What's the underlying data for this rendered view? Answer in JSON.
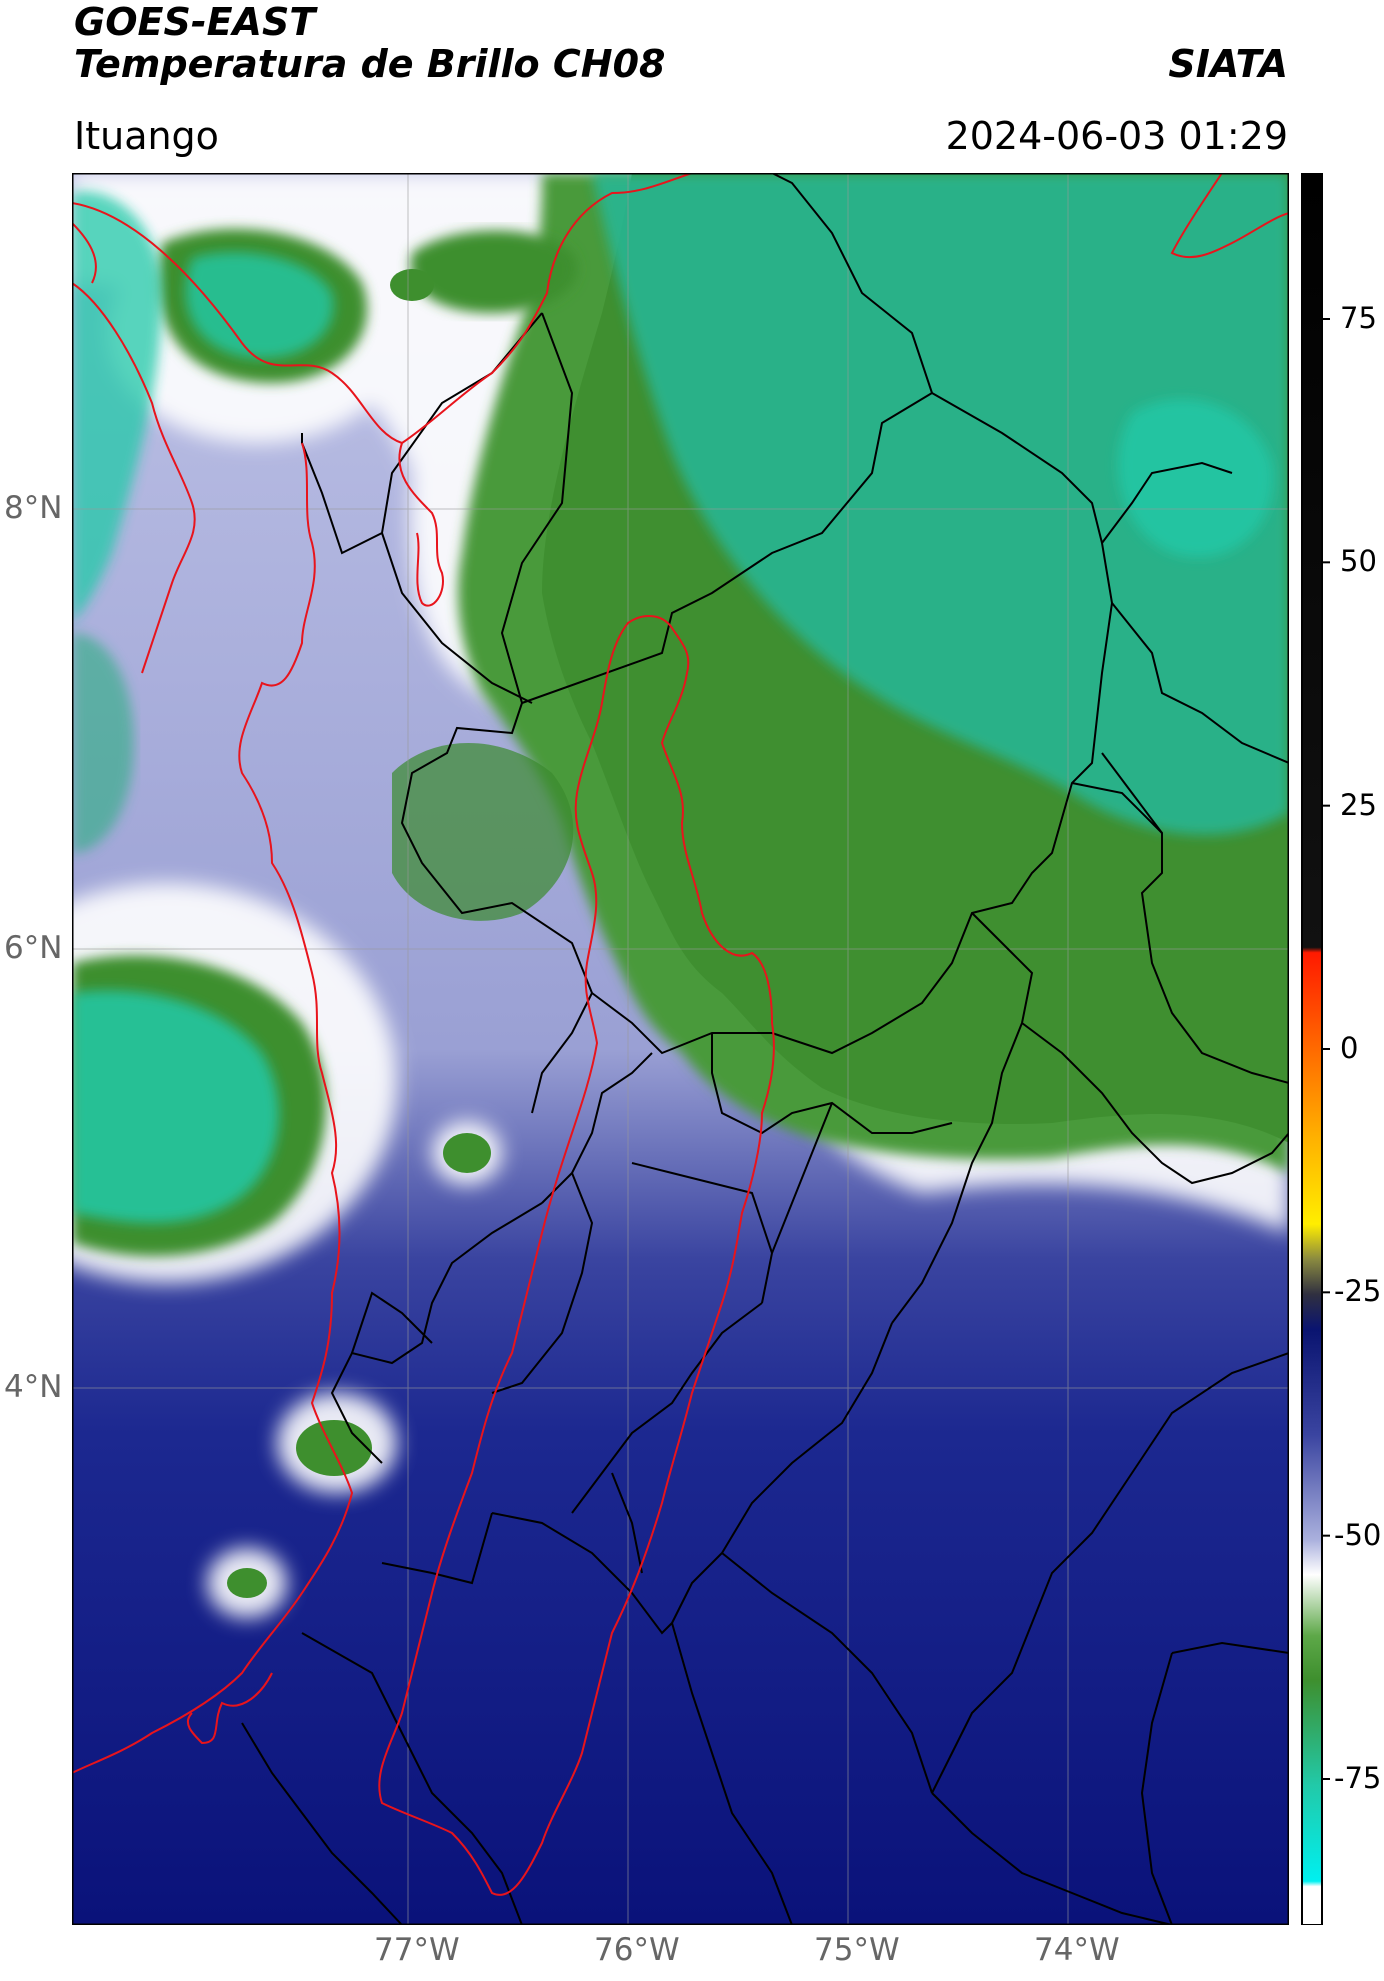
{
  "header": {
    "satellite": "GOES-EAST",
    "product": "Temperatura de Brillo CH08",
    "org": "SIATA",
    "region": "Ituango",
    "datetime": "2024-06-03 01:29"
  },
  "map": {
    "lat_labels": [
      "8°N",
      "6°N",
      "4°N"
    ],
    "lon_labels": [
      "77°W",
      "76°W",
      "75°W",
      "74°W"
    ],
    "lat_values": [
      8,
      6,
      4
    ],
    "lon_values": [
      -77,
      -76,
      -75,
      -74
    ]
  },
  "colorbar": {
    "ticks": [
      "75",
      "50",
      "25",
      "0",
      "-25",
      "-50",
      "-75"
    ],
    "tick_values": [
      75,
      50,
      25,
      0,
      -25,
      -50,
      -75
    ],
    "range": [
      -90,
      90
    ],
    "colors": {
      "warm": "#000000",
      "red": "#ff2200",
      "yellow": "#ffee00",
      "navy": "#0a1a7a",
      "lavender": "#aab0dd",
      "white": "#ffffff",
      "green": "#3e8f2e",
      "teal": "#22c9a8",
      "cyan": "#00e6e6"
    }
  },
  "colors": {
    "coast_line": "#e8141c",
    "border_line": "#000000"
  }
}
